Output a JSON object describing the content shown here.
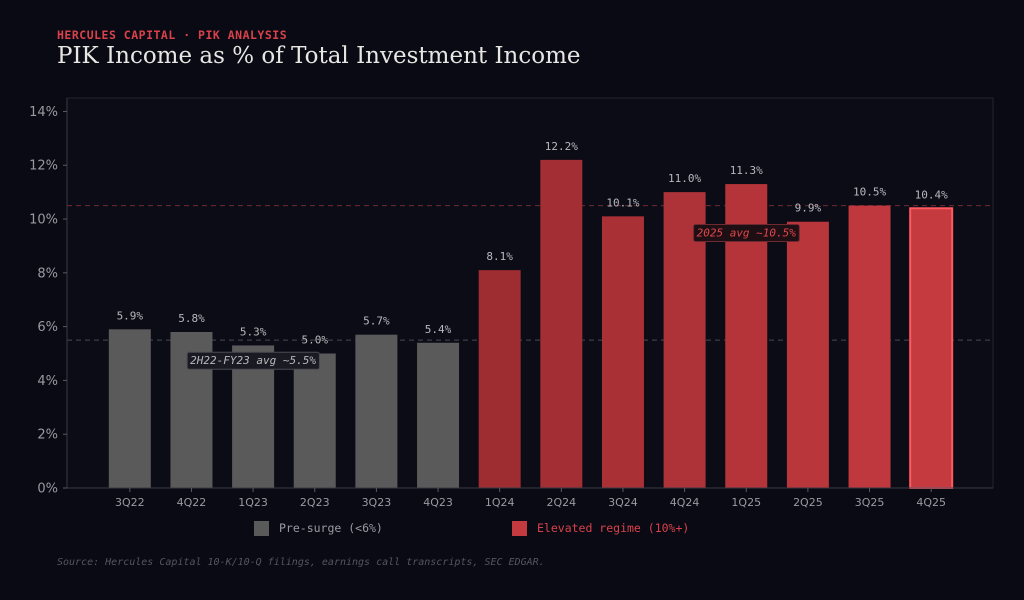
{
  "header": {
    "eyebrow": "HERCULES CAPITAL · PIK ANALYSIS",
    "title": "PIK Income as % of Total Investment Income"
  },
  "colors": {
    "background": "#0a0a14",
    "pre_surge": "#5a5a5a",
    "elevated": "#c43a3f",
    "elevated_dark": "#9e2d32",
    "highlight_border": "#ff5a60",
    "accent_text": "#d9424a"
  },
  "chart_data": {
    "type": "bar",
    "title": "PIK Income as % of Total Investment Income",
    "xlabel": "",
    "ylabel": "",
    "ylim": [
      0,
      14.5
    ],
    "yticks": [
      0,
      2,
      4,
      6,
      8,
      10,
      12,
      14
    ],
    "ytick_labels": [
      "0%",
      "2%",
      "4%",
      "6%",
      "8%",
      "10%",
      "12%",
      "14%"
    ],
    "categories": [
      "3Q22",
      "4Q22",
      "1Q23",
      "2Q23",
      "3Q23",
      "4Q23",
      "1Q24",
      "2Q24",
      "3Q24",
      "4Q24",
      "1Q25",
      "2Q25",
      "3Q25",
      "4Q25"
    ],
    "values": [
      5.9,
      5.8,
      5.3,
      5.0,
      5.7,
      5.4,
      8.1,
      12.2,
      10.1,
      11.0,
      11.3,
      9.9,
      10.5,
      10.4
    ],
    "value_labels": [
      "5.9%",
      "5.8%",
      "5.3%",
      "5.0%",
      "5.7%",
      "5.4%",
      "8.1%",
      "12.2%",
      "10.1%",
      "11.0%",
      "11.3%",
      "9.9%",
      "10.5%",
      "10.4%"
    ],
    "groups": [
      "pre",
      "pre",
      "pre",
      "pre",
      "pre",
      "pre",
      "elevated",
      "elevated",
      "elevated",
      "elevated",
      "elevated",
      "elevated",
      "elevated",
      "elevated"
    ],
    "highlight_index": 13,
    "reference_lines": [
      {
        "value": 5.5,
        "label": "2H22-FY23 avg ~5.5%",
        "style": "pre",
        "anchor_index": 2.5,
        "label_value": 4.75
      },
      {
        "value": 10.5,
        "label": "2025 avg ~10.5%",
        "style": "elevated",
        "anchor_index": 10.5,
        "label_value": 9.5
      }
    ],
    "legend": [
      {
        "label": "Pre-surge (<6%)",
        "color": "#5a5a5a",
        "text_color": "#9a9aa0"
      },
      {
        "label": "Elevated regime (10%+)",
        "color": "#c43a3f",
        "text_color": "#d9424a"
      }
    ],
    "legend_position": "bottom-center"
  },
  "footer": {
    "source": "Source: Hercules Capital 10-K/10-Q filings, earnings call transcripts, SEC EDGAR."
  }
}
